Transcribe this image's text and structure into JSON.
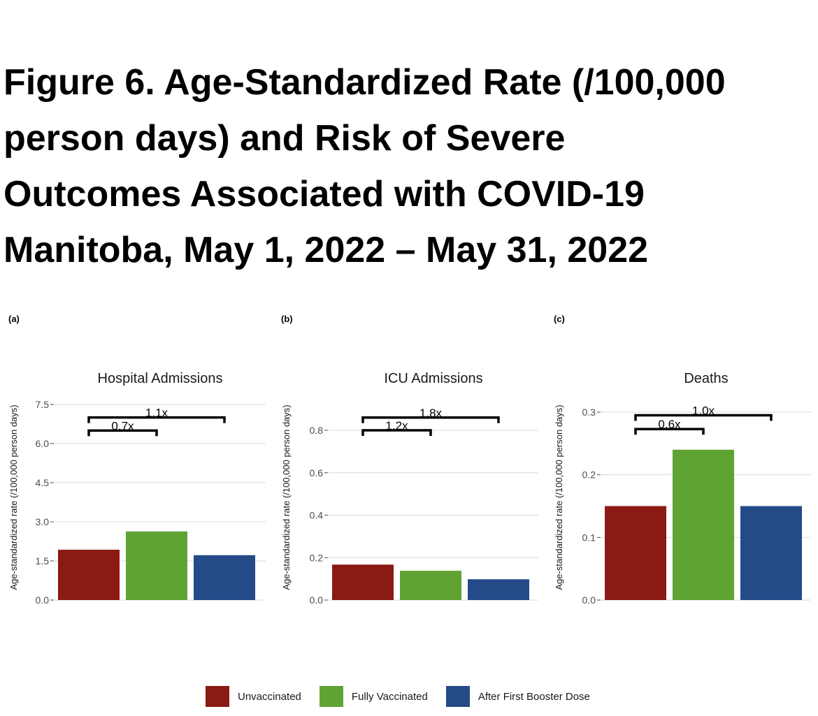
{
  "title_lines": [
    "Figure 6. Age-Standardized Rate (/100,000",
    "person days) and Risk of Severe",
    "Outcomes Associated with COVID-19",
    "Manitoba, May 1, 2022 – May 31, 2022"
  ],
  "legend": [
    {
      "label": "Unvaccinated",
      "color": "#8b1a14"
    },
    {
      "label": "Fully Vaccinated",
      "color": "#5fa333"
    },
    {
      "label": "After First Booster Dose",
      "color": "#244a88"
    }
  ],
  "chart_data": [
    {
      "type": "bar",
      "panel": "(a)",
      "title": "Hospital Admissions",
      "ylabel": "Age-standardized rate (/100,000 person days)",
      "xlabel": "",
      "categories": [
        "Unvaccinated",
        "Fully Vaccinated",
        "After First Booster Dose"
      ],
      "values": [
        1.93,
        2.63,
        1.72
      ],
      "ylim": [
        0,
        7.8
      ],
      "yticks": [
        "0.0",
        "1.5",
        "3.0",
        "4.5",
        "6.0",
        "7.5"
      ],
      "ytick_values": [
        0,
        1.5,
        3.0,
        4.5,
        6.0,
        7.5
      ],
      "grid": true,
      "annotations": [
        {
          "label": "0.7x",
          "from": 0,
          "to": 1,
          "y": 6.5
        },
        {
          "label": "1.1x",
          "from": 0,
          "to": 2,
          "y": 7.0
        }
      ]
    },
    {
      "type": "bar",
      "panel": "(b)",
      "title": "ICU Admissions",
      "ylabel": "Age-standardized rate (/100,000 person days)",
      "xlabel": "",
      "categories": [
        "Unvaccinated",
        "Fully Vaccinated",
        "After First Booster Dose"
      ],
      "values": [
        0.167,
        0.138,
        0.098
      ],
      "ylim": [
        0,
        0.96
      ],
      "yticks": [
        "0.0",
        "0.2",
        "0.4",
        "0.6",
        "0.8"
      ],
      "ytick_values": [
        0,
        0.2,
        0.4,
        0.6,
        0.8
      ],
      "grid": true,
      "annotations": [
        {
          "label": "1.2x",
          "from": 0,
          "to": 1,
          "y": 0.8
        },
        {
          "label": "1.8x",
          "from": 0,
          "to": 2,
          "y": 0.86
        }
      ]
    },
    {
      "type": "bar",
      "panel": "(c)",
      "title": "Deaths",
      "ylabel": "Age-standardized rate (/100,000 person days)",
      "xlabel": "",
      "categories": [
        "Unvaccinated",
        "Fully Vaccinated",
        "After First Booster Dose"
      ],
      "values": [
        0.15,
        0.24,
        0.15
      ],
      "ylim": [
        0,
        0.33
      ],
      "yticks": [
        "0.0",
        "0.1",
        "0.2",
        "0.3"
      ],
      "ytick_values": [
        0,
        0.1,
        0.2,
        0.3
      ],
      "grid": true,
      "annotations": [
        {
          "label": "0.6x",
          "from": 0,
          "to": 1,
          "y": 0.273
        },
        {
          "label": "1.0x",
          "from": 0,
          "to": 2,
          "y": 0.295
        }
      ]
    }
  ]
}
